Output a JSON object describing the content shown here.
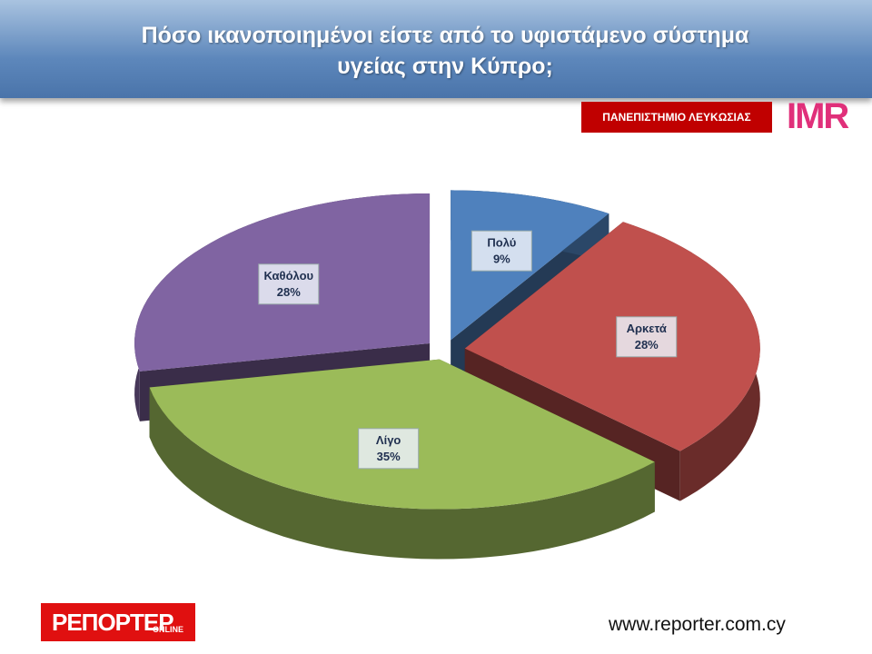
{
  "chart_data": {
    "type": "pie3d",
    "title": "Πόσο ικανοποιημένοι είστε από το υφιστάμενο σύστημα υγείας στην Κύπρο;",
    "categories": [
      "Πολύ",
      "Αρκετά",
      "Λίγο",
      "Καθόλου"
    ],
    "values": [
      9,
      28,
      35,
      28
    ],
    "value_labels": [
      "9%",
      "28%",
      "35%",
      "28%"
    ],
    "colors": [
      "#4f81bd",
      "#c0504d",
      "#9bbb59",
      "#8064a2"
    ]
  },
  "logos": {
    "university": "ΠΑΝΕΠΙΣΤΗΜΙΟ ΛΕΥΚΩΣΙΑΣ",
    "imr": "IMR",
    "reporter": "ΡΕΠΟΡΤΕΡ",
    "reporter_sub": "ONLINE"
  },
  "footer": {
    "url": "www.reporter.com.cy"
  }
}
